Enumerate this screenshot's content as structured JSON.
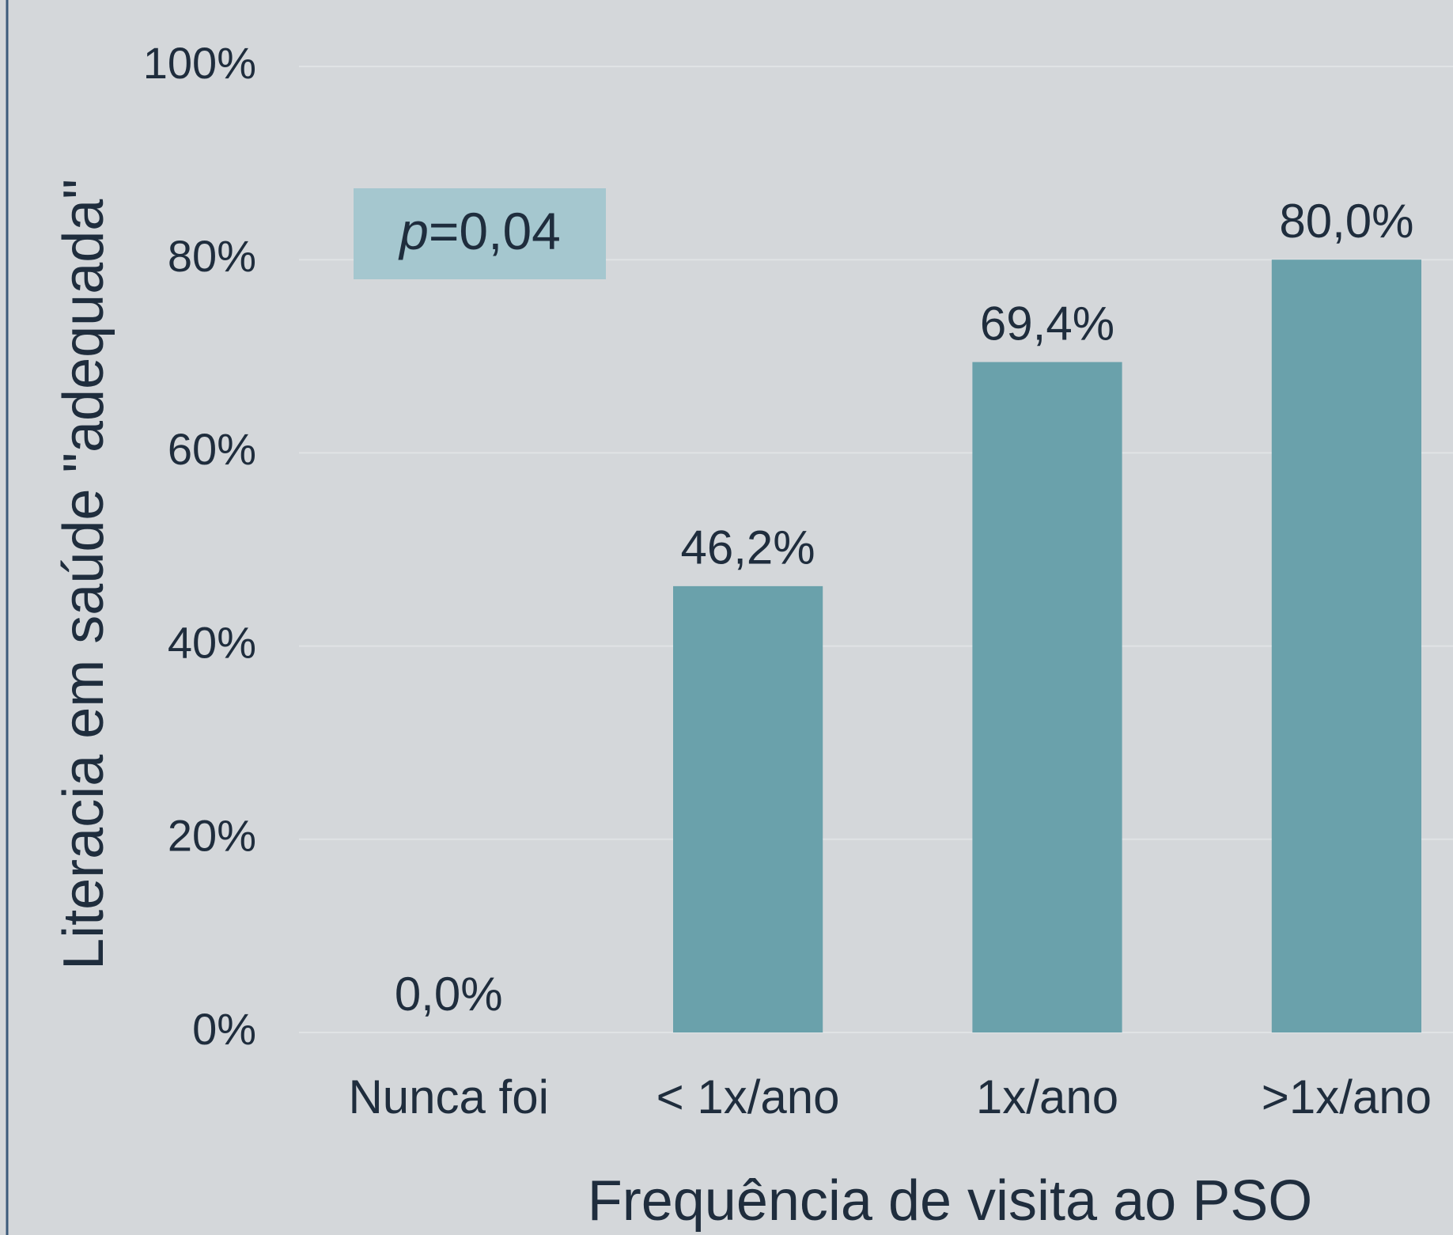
{
  "chart_data": {
    "type": "bar",
    "x_label": "Frequência de visita ao PSO",
    "y_label": "Literacia em saúde \"adequada\"",
    "categories": [
      "Nunca foi",
      "< 1x/ano",
      "1x/ano",
      ">1x/ano"
    ],
    "values": [
      0,
      46.2,
      69.4,
      80
    ],
    "value_labels": [
      "0,0%",
      "46,2%",
      "69,4%",
      "80,0%"
    ],
    "color": "#6aa1ab",
    "ylim": [
      0,
      100
    ],
    "yticks": [
      {
        "value": 0,
        "label": "0%"
      },
      {
        "value": 20,
        "label": "20%"
      },
      {
        "value": 40,
        "label": "40%"
      },
      {
        "value": 60,
        "label": "60%"
      },
      {
        "value": 80,
        "label": "80%"
      },
      {
        "value": 100,
        "label": "100%"
      }
    ],
    "grid": true,
    "annotation": {
      "italic": "p",
      "text": "=0,04"
    }
  }
}
